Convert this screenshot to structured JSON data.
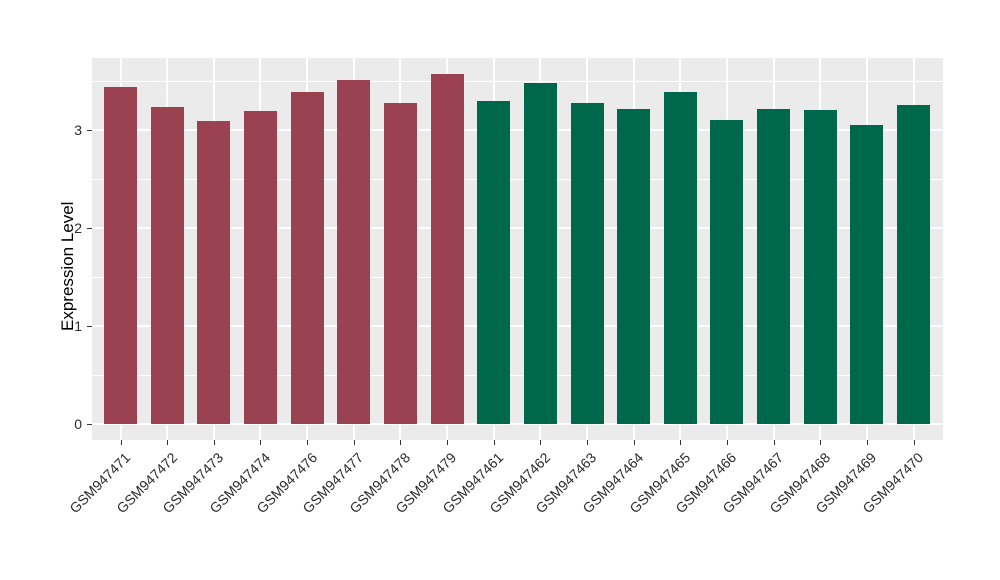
{
  "figure": {
    "background": "#ffffff",
    "panel_background": "#EBEBEB",
    "grid_color": "#ffffff",
    "tick_color": "#333333",
    "axis_text_color": "#2b2b2b"
  },
  "chart_data": {
    "type": "bar",
    "title": "",
    "xlabel": "",
    "ylabel": "Expression Level",
    "ylim": [
      0,
      3.73
    ],
    "yticks": [
      0,
      1,
      2,
      3
    ],
    "minor_ticks_step": 0.5,
    "grid": "major and minor horizontal white gridlines, major vertical at each bar center",
    "legend_position": "none",
    "bar_colors_legend": {
      "group_a": "#9B4252",
      "group_b": "#00684A"
    },
    "categories": [
      "GSM947471",
      "GSM947472",
      "GSM947473",
      "GSM947474",
      "GSM947476",
      "GSM947477",
      "GSM947478",
      "GSM947479",
      "GSM947461",
      "GSM947462",
      "GSM947463",
      "GSM947464",
      "GSM947465",
      "GSM947466",
      "GSM947467",
      "GSM947468",
      "GSM947469",
      "GSM947470"
    ],
    "values": [
      3.44,
      3.23,
      3.09,
      3.19,
      3.39,
      3.51,
      3.28,
      3.57,
      3.3,
      3.48,
      3.28,
      3.21,
      3.39,
      3.1,
      3.21,
      3.2,
      3.05,
      3.26
    ],
    "colors": [
      "#9B4252",
      "#9B4252",
      "#9B4252",
      "#9B4252",
      "#9B4252",
      "#9B4252",
      "#9B4252",
      "#9B4252",
      "#00684A",
      "#00684A",
      "#00684A",
      "#00684A",
      "#00684A",
      "#00684A",
      "#00684A",
      "#00684A",
      "#00684A",
      "#00684A"
    ]
  }
}
